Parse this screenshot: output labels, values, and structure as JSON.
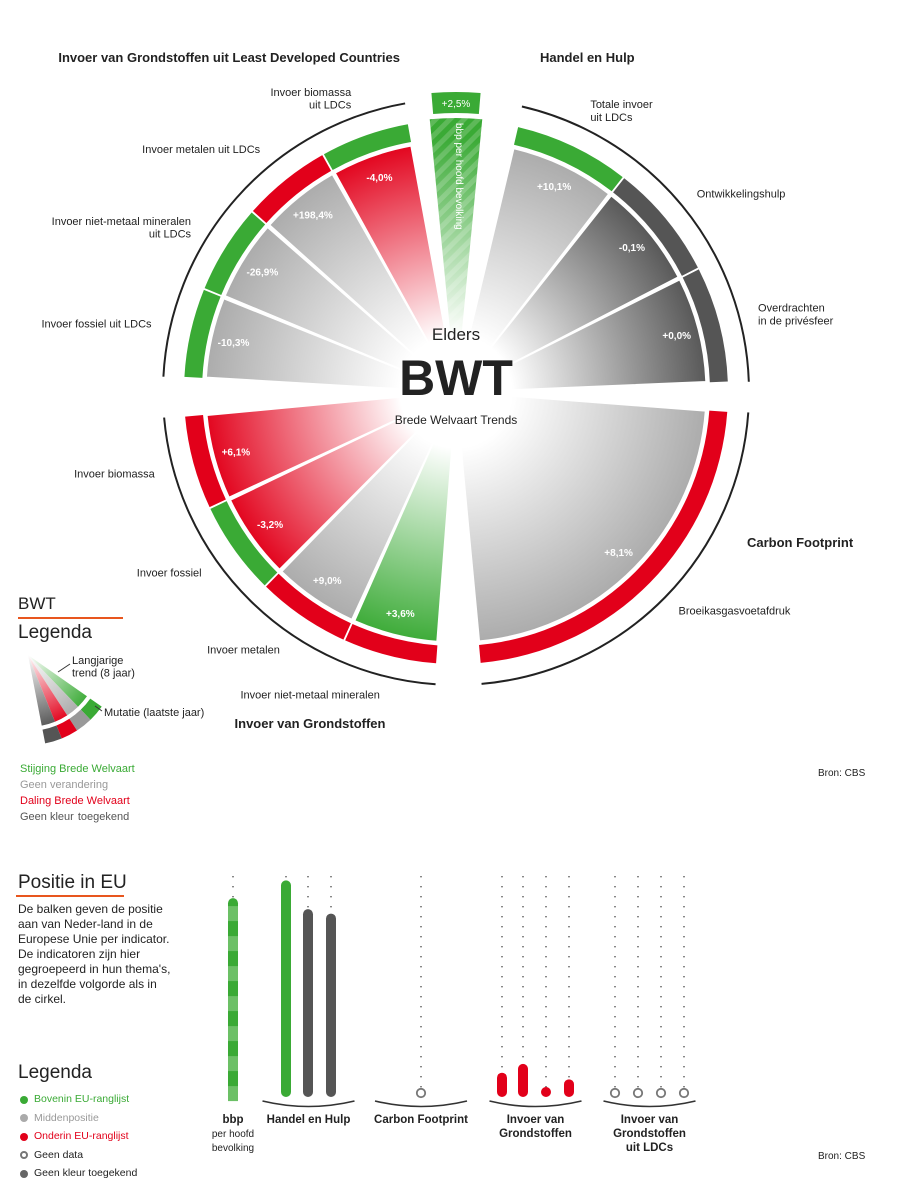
{
  "center": {
    "top": "Elders",
    "big": "BWT",
    "sub": "Brede Welvaart Trends"
  },
  "colors": {
    "green": "#3aaa35",
    "red": "#e2001a",
    "gray": "#aaaaaa",
    "dark": "#555555",
    "accent": "#e8561e"
  },
  "circle": {
    "groups": [
      {
        "title": "Handel en Hulp",
        "slices": [
          {
            "label": [
              "Totale invoer",
              "uit LDCs"
            ],
            "trend": "gray",
            "mutation_color": "green",
            "mutation": "+10,1%"
          },
          {
            "label": [
              "Ontwikkelingshulp"
            ],
            "trend": "dark",
            "mutation_color": "dark",
            "mutation": "-0,1%"
          },
          {
            "label": [
              "Overdrachten",
              "in de privésfeer"
            ],
            "trend": "dark",
            "mutation_color": "dark",
            "mutation": "+0,0%"
          }
        ]
      },
      {
        "title": "Carbon Footprint",
        "slices": [
          {
            "label": [
              "Broeikasgasvoetafdruk"
            ],
            "trend": "gray",
            "mutation_color": "red",
            "mutation": "+8,1%"
          }
        ]
      },
      {
        "title": "Invoer van Grondstoffen",
        "slices": [
          {
            "label": [
              "Invoer niet-metaal mineralen"
            ],
            "trend": "green",
            "mutation_color": "red",
            "mutation": "+3,6%"
          },
          {
            "label": [
              "Invoer metalen"
            ],
            "trend": "gray",
            "mutation_color": "red",
            "mutation": "+9,0%"
          },
          {
            "label": [
              "Invoer fossiel"
            ],
            "trend": "red",
            "mutation_color": "green",
            "mutation": "-3,2%"
          },
          {
            "label": [
              "Invoer biomassa"
            ],
            "trend": "red",
            "mutation_color": "red",
            "mutation": "+6,1%"
          }
        ]
      },
      {
        "title": "Invoer van Grondstoffen uit Least Developed Countries",
        "slices": [
          {
            "label": [
              "Invoer fossiel uit LDCs"
            ],
            "trend": "gray",
            "mutation_color": "green",
            "mutation": "-10,3%"
          },
          {
            "label": [
              "Invoer niet-metaal mineralen",
              "uit LDCs"
            ],
            "trend": "gray",
            "mutation_color": "green",
            "mutation": "-26,9%"
          },
          {
            "label": [
              "Invoer metalen uit LDCs"
            ],
            "trend": "gray",
            "mutation_color": "red",
            "mutation": "+198,4%"
          },
          {
            "label": [
              "Invoer biomassa",
              "uit LDCs"
            ],
            "trend": "red",
            "mutation_color": "green",
            "mutation": "-4,0%"
          }
        ]
      }
    ],
    "bbp": {
      "label": "bbp per hoofd bevolking",
      "trend": "green",
      "mutation_color": "green",
      "mutation": "+2,5%"
    }
  },
  "legend_bwt": {
    "heading": "BWT",
    "title": "Legenda",
    "trend_label": [
      "Langjarige",
      "trend (8 jaar)"
    ],
    "mutation_label": "Mutatie (laatste jaar)",
    "items": [
      {
        "label": [
          "Stijging Brede Welvaart"
        ],
        "color": "#3aaa35"
      },
      {
        "label": [
          "Geen verandering"
        ],
        "color": "#999999"
      },
      {
        "label": [
          "Daling Brede Welvaart"
        ],
        "color": "#e2001a"
      },
      {
        "label": [
          "Geen kleur",
          "toegekend"
        ],
        "color": "#555555"
      }
    ]
  },
  "source_top": "Bron: CBS",
  "eu": {
    "title": "Positie in EU",
    "description": "De balken geven de positie aan van Neder-land in de Europese Unie per indicator. De indicatoren zijn hier gegroepeerd in hun thema's, in dezelfde volgorde als in de cirkel.",
    "legend_title": "Legenda",
    "legend": [
      {
        "label": "Bovenin EU-ranglijst",
        "color": "#3aaa35",
        "type": "fill"
      },
      {
        "label": "Middenpositie",
        "color": "#aaaaaa",
        "type": "fill"
      },
      {
        "label": "Onderin EU-ranglijst",
        "color": "#e2001a",
        "type": "fill"
      },
      {
        "label": "Geen data",
        "color": "#777777",
        "type": "ring"
      },
      {
        "label": "Geen kleur toegekend",
        "color": "#666666",
        "type": "fill"
      }
    ],
    "source": "Bron: CBS",
    "chart_data": {
      "type": "bar",
      "ylim": [
        0,
        1
      ],
      "groups": [
        {
          "label": [
            "bbp",
            "per hoofd",
            "bevolking"
          ],
          "bars": [
            {
              "value": 0.9,
              "color": "striped-green"
            }
          ]
        },
        {
          "label": [
            "Handel en Hulp"
          ],
          "bars": [
            {
              "value": 0.98,
              "color": "green"
            },
            {
              "value": 0.85,
              "color": "dark"
            },
            {
              "value": 0.83,
              "color": "dark"
            }
          ]
        },
        {
          "label": [
            "Carbon Footprint"
          ],
          "bars": [
            {
              "value": null,
              "color": "none"
            }
          ]
        },
        {
          "label": [
            "Invoer van",
            "Grondstoffen"
          ],
          "bars": [
            {
              "value": 0.11,
              "color": "red"
            },
            {
              "value": 0.15,
              "color": "red"
            },
            {
              "value": 0.02,
              "color": "red"
            },
            {
              "value": 0.08,
              "color": "red"
            }
          ]
        },
        {
          "label": [
            "Invoer van",
            "Grondstoffen",
            "uit LDCs"
          ],
          "bars": [
            {
              "value": null,
              "color": "none"
            },
            {
              "value": null,
              "color": "none"
            },
            {
              "value": null,
              "color": "none"
            },
            {
              "value": null,
              "color": "none"
            }
          ]
        }
      ]
    }
  }
}
